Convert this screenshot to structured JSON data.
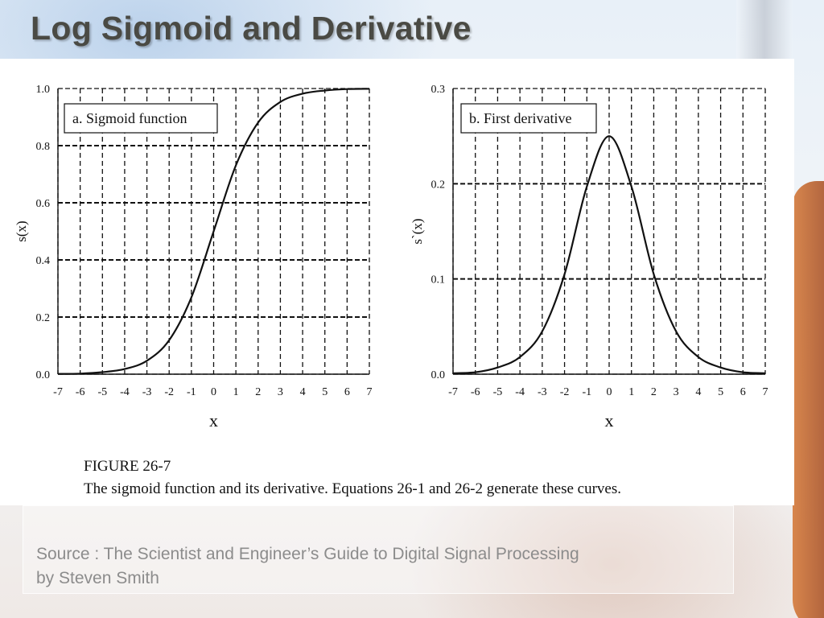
{
  "slide": {
    "title": "Log Sigmoid and Derivative",
    "source_line1": "Source : The Scientist and Engineer’s Guide to Digital Signal Processing",
    "source_line2": "by Steven Smith"
  },
  "figure": {
    "caption_title": "FIGURE 26-7",
    "caption_text": "The sigmoid function and its derivative.  Equations 26-1 and 26-2 generate these curves."
  },
  "colors": {
    "title": "#4a4a44",
    "source_text": "#8c8c8c",
    "curve": "#111111"
  },
  "chart_data": [
    {
      "type": "line",
      "title": "a.  Sigmoid function",
      "xlabel": "x",
      "ylabel": "s(x)",
      "xlim": [
        -7,
        7
      ],
      "ylim": [
        0,
        1
      ],
      "xticks": [
        "-7",
        "-6",
        "-5",
        "-4",
        "-3",
        "-2",
        "-1",
        "0",
        "1",
        "2",
        "3",
        "4",
        "5",
        "6",
        "7"
      ],
      "yticks": [
        "0.0",
        "0.2",
        "0.4",
        "0.6",
        "0.8",
        "1.0"
      ],
      "grid": true,
      "legend_position": "top-left",
      "series": [
        {
          "x": [
            -7,
            -6,
            -5,
            -4,
            -3,
            -2,
            -1,
            0,
            1,
            2,
            3,
            4,
            5,
            6,
            7
          ],
          "y": [
            0.001,
            0.002,
            0.007,
            0.018,
            0.047,
            0.119,
            0.269,
            0.5,
            0.731,
            0.881,
            0.953,
            0.982,
            0.993,
            0.998,
            0.999
          ]
        }
      ]
    },
    {
      "type": "line",
      "title": "b.  First derivative",
      "xlabel": "x",
      "ylabel": "s`(x)",
      "xlim": [
        -7,
        7
      ],
      "ylim": [
        0,
        0.3
      ],
      "xticks": [
        "-7",
        "-6",
        "-5",
        "-4",
        "-3",
        "-2",
        "-1",
        "0",
        "1",
        "2",
        "3",
        "4",
        "5",
        "6",
        "7"
      ],
      "yticks": [
        "0.0",
        "0.1",
        "0.2",
        "0.3"
      ],
      "grid": true,
      "legend_position": "top-left",
      "series": [
        {
          "x": [
            -7,
            -6,
            -5,
            -4,
            -3,
            -2,
            -1,
            0,
            1,
            2,
            3,
            4,
            5,
            6,
            7
          ],
          "y": [
            0.001,
            0.002,
            0.007,
            0.018,
            0.045,
            0.105,
            0.197,
            0.25,
            0.197,
            0.105,
            0.045,
            0.018,
            0.007,
            0.002,
            0.001
          ]
        }
      ]
    }
  ]
}
